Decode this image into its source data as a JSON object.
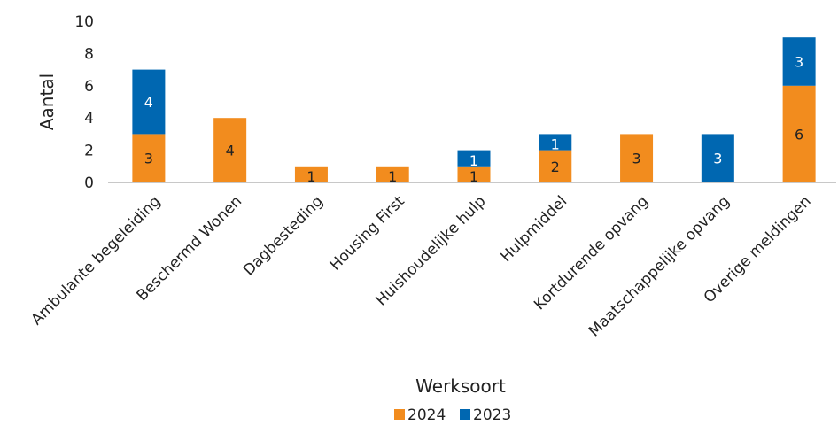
{
  "chart_data": {
    "type": "bar",
    "stacked": true,
    "categories": [
      "Ambulante begeleiding",
      "Beschermd Wonen",
      "Dagbesteding",
      "Housing First",
      "Huishoudelijke hulp",
      "Hulpmiddel",
      "Kortdurende opvang",
      "Maatschappelijke opvang",
      "Overige meldingen"
    ],
    "series": [
      {
        "name": "2024",
        "color": "#F28C1E",
        "label_color": "#222222",
        "values": [
          3,
          4,
          1,
          1,
          1,
          2,
          3,
          0,
          6
        ]
      },
      {
        "name": "2023",
        "color": "#0067B1",
        "label_color": "#ffffff",
        "values": [
          4,
          0,
          0,
          0,
          1,
          1,
          0,
          3,
          3
        ]
      }
    ],
    "xlabel": "Werksoort",
    "ylabel": "Aantal",
    "ylim": [
      0,
      10
    ],
    "yticks": [
      "0",
      "2",
      "4",
      "6",
      "8",
      "10"
    ],
    "grid": false,
    "legend_position": "bottom"
  }
}
